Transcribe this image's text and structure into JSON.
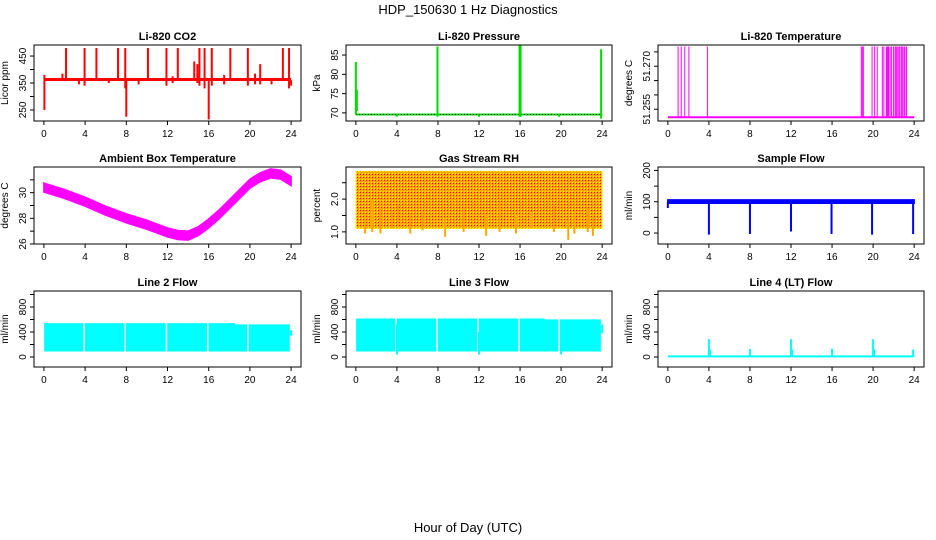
{
  "title": "HDP_150630  1 Hz Diagnostics",
  "xlabel": "Hour of Day (UTC)",
  "chart_data": [
    {
      "type": "line",
      "title": "Li-820 CO2",
      "ylabel": "Licor ppm",
      "color": "#FF0000",
      "xlim": [
        0,
        24
      ],
      "xticks": [
        0,
        4,
        8,
        12,
        16,
        20,
        24
      ],
      "ylim": [
        209,
        491
      ],
      "yticks": [
        250,
        300,
        350,
        400,
        450
      ],
      "ytick_labels": [
        "250",
        "",
        "350",
        "",
        "450"
      ],
      "baseline": {
        "y": 363
      },
      "spikes": [
        [
          0.05,
          250,
          380
        ],
        [
          2.15,
          363,
          480
        ],
        [
          3.95,
          340,
          480
        ],
        [
          5.1,
          363,
          480
        ],
        [
          7.2,
          363,
          480
        ],
        [
          7.9,
          330,
          480
        ],
        [
          8.0,
          225,
          363
        ],
        [
          10.1,
          363,
          480
        ],
        [
          11.9,
          340,
          480
        ],
        [
          13.0,
          363,
          480
        ],
        [
          14.6,
          363,
          430
        ],
        [
          15.1,
          340,
          480
        ],
        [
          15.6,
          330,
          480
        ],
        [
          16.0,
          215,
          363
        ],
        [
          16.3,
          340,
          480
        ],
        [
          18.1,
          363,
          480
        ],
        [
          19.8,
          340,
          480
        ],
        [
          21.0,
          345,
          420
        ],
        [
          23.2,
          363,
          480
        ],
        [
          23.8,
          330,
          480
        ],
        [
          24.0,
          340,
          360
        ],
        [
          1.8,
          363,
          385
        ],
        [
          3.4,
          345,
          363
        ],
        [
          6.3,
          350,
          363
        ],
        [
          9.2,
          345,
          363
        ],
        [
          12.5,
          350,
          375
        ],
        [
          14.9,
          350,
          420
        ],
        [
          17.5,
          345,
          380
        ],
        [
          20.5,
          345,
          385
        ],
        [
          22.1,
          345,
          363
        ]
      ]
    },
    {
      "type": "line",
      "title": "Li-820 Pressure",
      "ylabel": "kPa",
      "color": "#00DD00",
      "xlim": [
        0,
        24
      ],
      "xticks": [
        0,
        4,
        8,
        12,
        16,
        20,
        24
      ],
      "ylim": [
        67.9,
        87.6
      ],
      "yticks": [
        70,
        75,
        80,
        85
      ],
      "ytick_labels": [
        "70",
        "75",
        "80",
        "85"
      ],
      "baseline": {
        "y": 69.6
      },
      "spikes": [
        [
          0.0,
          69.6,
          83.2
        ],
        [
          0.1,
          70.5,
          76
        ],
        [
          7.95,
          69,
          87.2
        ],
        [
          15.95,
          69,
          87.5
        ],
        [
          16.05,
          69,
          87.5
        ],
        [
          23.9,
          68.5,
          86.5
        ],
        [
          4.0,
          69,
          69.6
        ],
        [
          12.0,
          69,
          69.6
        ],
        [
          19.8,
          69,
          69.6
        ]
      ]
    },
    {
      "type": "line",
      "title": "Li-820 Temperature",
      "ylabel": "degrees C",
      "color": "#FF00FF",
      "xlim": [
        0,
        24
      ],
      "xticks": [
        0,
        4,
        8,
        12,
        16,
        20,
        24
      ],
      "ylim": [
        51.2509,
        51.2774
      ],
      "yticks": [
        51.255,
        51.26,
        51.265,
        51.27,
        51.275
      ],
      "ytick_labels": [
        "51.255",
        "",
        "",
        "51.270",
        ""
      ],
      "baseline": {
        "y": 51.2522
      },
      "spikes": [
        [
          1.0,
          51.2522,
          51.2769
        ],
        [
          1.3,
          51.2522,
          51.2769
        ],
        [
          1.65,
          51.2522,
          51.2769
        ],
        [
          2.05,
          51.2522,
          51.2769
        ],
        [
          3.85,
          51.2522,
          51.2769
        ],
        [
          18.85,
          51.2522,
          51.2769
        ],
        [
          18.95,
          51.2522,
          51.2769
        ],
        [
          19.05,
          51.2522,
          51.2769
        ],
        [
          19.9,
          51.2522,
          51.2769
        ],
        [
          20.15,
          51.2522,
          51.2769
        ],
        [
          20.4,
          51.2522,
          51.2769
        ],
        [
          20.9,
          51.2522,
          51.2769
        ],
        [
          21.05,
          51.2522,
          51.2769
        ],
        [
          21.3,
          51.2522,
          51.2769
        ],
        [
          21.4,
          51.2522,
          51.2769
        ],
        [
          21.5,
          51.2522,
          51.2769
        ],
        [
          21.65,
          51.2522,
          51.2769
        ],
        [
          21.8,
          51.2522,
          51.2769
        ],
        [
          22.0,
          51.2522,
          51.2769
        ],
        [
          22.15,
          51.2522,
          51.2769
        ],
        [
          22.25,
          51.2522,
          51.2769
        ],
        [
          22.35,
          51.2522,
          51.2769
        ],
        [
          22.5,
          51.2522,
          51.2769
        ],
        [
          22.6,
          51.2522,
          51.2769
        ],
        [
          22.75,
          51.2522,
          51.2769
        ],
        [
          22.85,
          51.2522,
          51.2769
        ],
        [
          23.0,
          51.2522,
          51.2769
        ],
        [
          23.1,
          51.2522,
          51.2769
        ],
        [
          23.25,
          51.2522,
          51.2769
        ]
      ]
    },
    {
      "type": "area",
      "title": "Ambient Box Temperature",
      "ylabel": "degrees C",
      "color": "#FF00FF",
      "xlim": [
        0,
        24
      ],
      "xticks": [
        0,
        4,
        8,
        12,
        16,
        20,
        24
      ],
      "ylim": [
        26,
        32
      ],
      "yticks": [
        26,
        27,
        28,
        29,
        30,
        31
      ],
      "ytick_labels": [
        "26",
        "",
        "28",
        "",
        "30",
        ""
      ],
      "band": {
        "x": [
          0,
          2,
          4,
          6,
          8,
          10,
          12,
          13,
          14,
          15,
          16,
          17,
          18,
          19,
          20,
          21,
          22,
          23,
          24
        ],
        "center": [
          30.4,
          29.9,
          29.3,
          28.6,
          28.0,
          27.5,
          26.9,
          26.7,
          26.65,
          27.0,
          27.6,
          28.3,
          29.1,
          29.9,
          30.7,
          31.2,
          31.5,
          31.4,
          30.9
        ],
        "half_width": 0.35
      }
    },
    {
      "type": "area",
      "title": "Gas Stream RH",
      "ylabel": "percent",
      "colors": [
        "#FFA500",
        "#FF0000",
        "#FFFF00"
      ],
      "xlim": [
        0,
        24
      ],
      "xticks": [
        0,
        4,
        8,
        12,
        16,
        20,
        24
      ],
      "ylim": [
        0.63,
        2.98
      ],
      "yticks": [
        1.0,
        1.5,
        2.0,
        2.5
      ],
      "ytick_labels": [
        "1.0",
        "",
        "2.0",
        ""
      ],
      "band": {
        "x": [
          0,
          24
        ],
        "low": [
          1.1,
          1.1
        ],
        "high": [
          2.85,
          2.85
        ]
      },
      "spikes": [
        [
          0.9,
          0.95,
          1.5
        ],
        [
          1.6,
          1.0,
          2.0
        ],
        [
          2.4,
          0.95,
          1.7
        ],
        [
          3.5,
          1.1,
          1.6
        ],
        [
          4.1,
          1.2,
          1.8
        ],
        [
          5.3,
          0.95,
          1.5
        ],
        [
          6.5,
          1.05,
          1.6
        ],
        [
          8.7,
          0.85,
          1.4
        ],
        [
          10.5,
          1.0,
          1.7
        ],
        [
          12.7,
          0.88,
          1.5
        ],
        [
          14.0,
          1.0,
          1.9
        ],
        [
          15.6,
          0.95,
          1.5
        ],
        [
          17.1,
          1.1,
          1.6
        ],
        [
          19.3,
          1.0,
          1.8
        ],
        [
          20.7,
          0.75,
          1.3
        ],
        [
          21.3,
          0.95,
          1.6
        ],
        [
          22.6,
          1.0,
          1.7
        ],
        [
          23.1,
          0.88,
          1.5
        ]
      ]
    },
    {
      "type": "line",
      "title": "Sample Flow",
      "ylabel": "ml/min",
      "color": "#0000FF",
      "xlim": [
        0,
        24
      ],
      "xticks": [
        0,
        4,
        8,
        12,
        16,
        20,
        24
      ],
      "ylim": [
        -35,
        211
      ],
      "yticks": [
        0,
        50,
        100,
        150,
        200
      ],
      "ytick_labels": [
        "0",
        "",
        "100",
        "",
        "200"
      ],
      "band": {
        "x": [
          0,
          24
        ],
        "low": [
          95,
          95
        ],
        "high": [
          106,
          106
        ]
      },
      "spikes": [
        [
          0.0,
          80,
          100
        ],
        [
          4.0,
          -5,
          100
        ],
        [
          8.0,
          -3,
          100
        ],
        [
          12.0,
          5,
          100
        ],
        [
          15.95,
          -3,
          100
        ],
        [
          19.9,
          -5,
          100
        ],
        [
          23.9,
          -3,
          100
        ]
      ]
    },
    {
      "type": "area",
      "title": "Line 2 Flow",
      "ylabel": "ml/min",
      "color": "#00FFFF",
      "xlim": [
        0,
        24
      ],
      "xticks": [
        0,
        4,
        8,
        12,
        16,
        20,
        24
      ],
      "ylim": [
        -160,
        1056
      ],
      "yticks": [
        0,
        200,
        400,
        600,
        800,
        1000
      ],
      "ytick_labels": [
        "0",
        "",
        "400",
        "",
        "800",
        ""
      ],
      "band": {
        "x": [
          0.1,
          18.5,
          18.5,
          23.8
        ],
        "low": [
          100,
          100,
          100,
          100
        ],
        "high": [
          530,
          530,
          510,
          510
        ]
      },
      "gaps": [
        3.9,
        7.9,
        11.9,
        15.9,
        19.8
      ],
      "spikes": [
        [
          24.0,
          340,
          430
        ]
      ]
    },
    {
      "type": "area",
      "title": "Line 3 Flow",
      "ylabel": "ml/min",
      "color": "#00FFFF",
      "xlim": [
        0,
        24
      ],
      "xticks": [
        0,
        4,
        8,
        12,
        16,
        20,
        24
      ],
      "ylim": [
        -160,
        1056
      ],
      "yticks": [
        0,
        200,
        400,
        600,
        800,
        1000
      ],
      "ytick_labels": [
        "0",
        "",
        "400",
        "",
        "800",
        ""
      ],
      "band": {
        "x": [
          0.1,
          18.3,
          18.3,
          23.8
        ],
        "low": [
          100,
          100,
          100,
          100
        ],
        "high": [
          605,
          605,
          590,
          590
        ]
      },
      "gaps": [
        3.9,
        7.9,
        11.9,
        15.9,
        19.8
      ],
      "spikes": [
        [
          4.0,
          40,
          520
        ],
        [
          12.0,
          40,
          400
        ],
        [
          20.0,
          40,
          380
        ],
        [
          24.0,
          380,
          520
        ]
      ]
    },
    {
      "type": "line",
      "title": "Line 4 (LT) Flow",
      "ylabel": "ml/min",
      "color": "#00FFFF",
      "xlim": [
        0,
        24
      ],
      "xticks": [
        0,
        4,
        8,
        12,
        16,
        20,
        24
      ],
      "ylim": [
        -160,
        1056
      ],
      "yticks": [
        0,
        200,
        400,
        600,
        800,
        1000
      ],
      "ytick_labels": [
        "0",
        "",
        "400",
        "",
        "800",
        ""
      ],
      "baseline": {
        "y": 10
      },
      "spikes": [
        [
          4.0,
          10,
          285
        ],
        [
          4.1,
          10,
          120
        ],
        [
          8.0,
          10,
          130
        ],
        [
          12.0,
          10,
          285
        ],
        [
          12.1,
          10,
          120
        ],
        [
          16.0,
          10,
          130
        ],
        [
          20.0,
          10,
          285
        ],
        [
          20.1,
          10,
          120
        ],
        [
          23.9,
          10,
          120
        ]
      ]
    }
  ]
}
